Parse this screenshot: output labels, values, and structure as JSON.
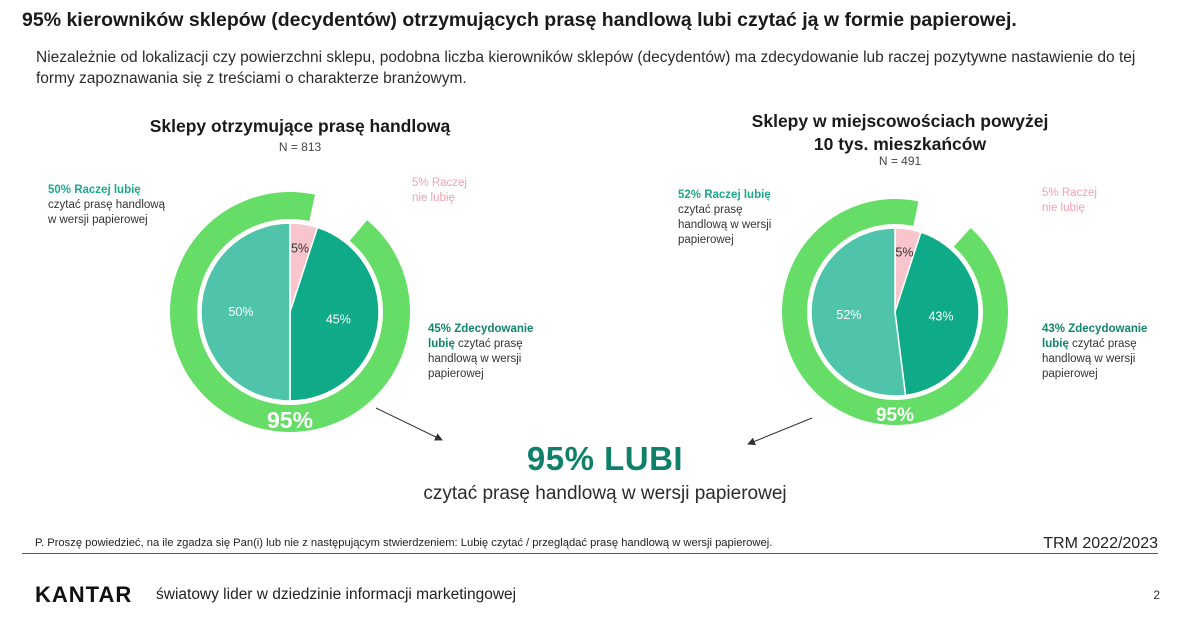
{
  "headline": "95%  kierowników sklepów (decydentów) otrzymujących prasę handlową lubi czytać ją w formie papierowej.",
  "subtext": "Niezależnie od lokalizacji czy powierzchni sklepu, podobna liczba kierowników sklepów (decydentów) ma zdecydowanie lub raczej pozytywne nastawienie do tej formy zapoznawania się z treściami o charakterze branżowym.",
  "colors": {
    "outer_ring": "#66dd66",
    "like_rather": "#4fc4aa",
    "like_strong": "#0faa88",
    "dislike_rather": "#f8c5cd",
    "big_stat": "#11806a"
  },
  "chart_data": [
    {
      "type": "pie",
      "title": "Sklepy otrzymujące prasę handlową",
      "n_label": "N = 813",
      "total_label": "95%",
      "slices": [
        {
          "value": 50,
          "label": "50%",
          "legend_bold": "50% Raczej lubię",
          "legend_rest": "czytać prasę handlową w wersji papierowej"
        },
        {
          "value": 5,
          "label": "5%",
          "legend_bold": "",
          "legend_rest": "5% Raczej nie lubię"
        },
        {
          "value": 45,
          "label": "45%",
          "legend_bold": "45% Zdecydowanie lubię",
          "legend_rest": "czytać prasę handlową w wersji papierowej"
        }
      ]
    },
    {
      "type": "pie",
      "title": "Sklepy w miejscowościach powyżej 10 tys. mieszkańców",
      "n_label": "N = 491",
      "total_label": "95%",
      "slices": [
        {
          "value": 52,
          "label": "52%",
          "legend_bold": "52% Raczej lubię",
          "legend_rest": "czytać prasę handlową w wersji papierowej"
        },
        {
          "value": 5,
          "label": "5%",
          "legend_bold": "",
          "legend_rest": "5% Raczej nie lubię"
        },
        {
          "value": 43,
          "label": "43%",
          "legend_bold": "43% Zdecydowanie lubię",
          "legend_rest": "czytać prasę handlową w wersji papierowej"
        }
      ]
    }
  ],
  "big_stat": "95% LUBI",
  "big_stat_sub": "czytać prasę handlową w wersji papierowej",
  "question": "P. Proszę powiedzieć,  na ile zgadza się Pan(i) lub nie z następującym stwierdzeniem:  Lubię czytać  / przeglądać prasę handlową w wersji papierowej.",
  "source": "TRM 2022/2023",
  "logo": "KANTAR",
  "tagline": "światowy lider w dziedzinie informacji marketingowej",
  "page_number": "2"
}
